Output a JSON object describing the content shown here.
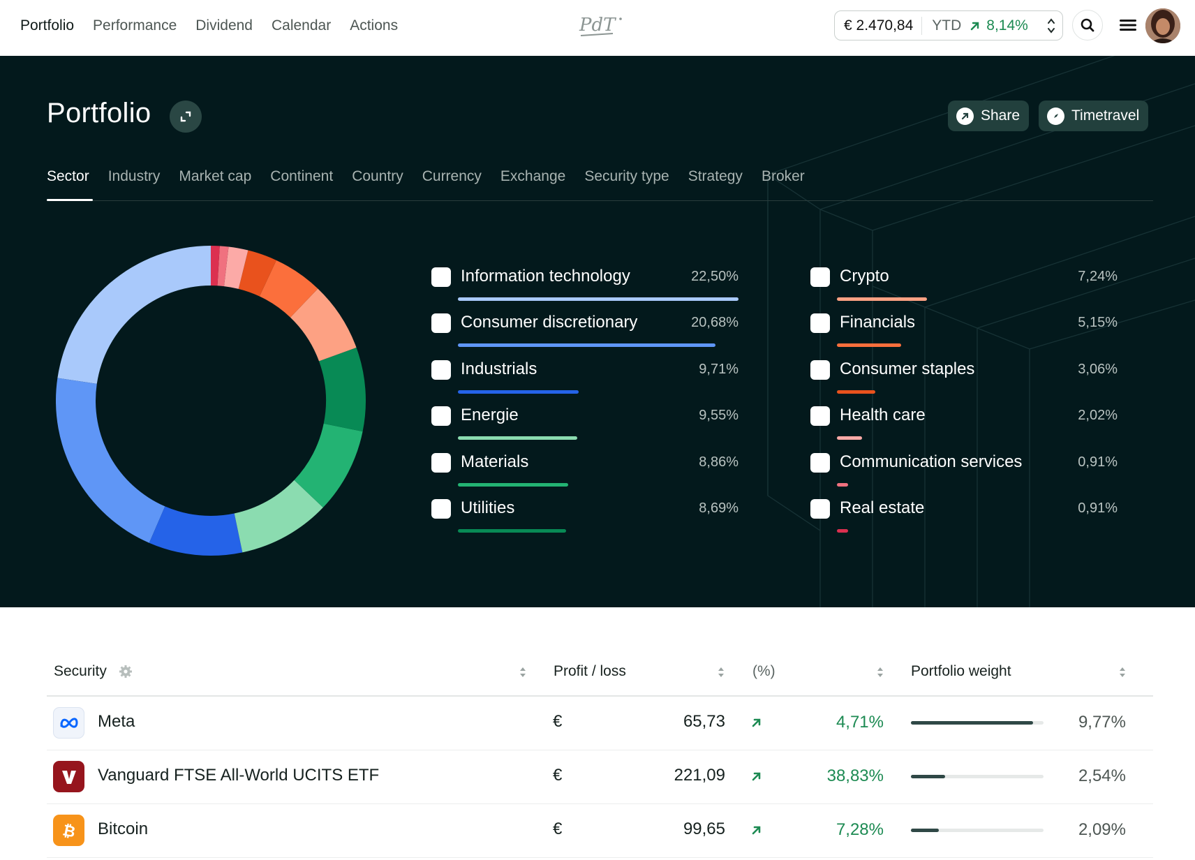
{
  "nav": {
    "items": [
      "Portfolio",
      "Performance",
      "Dividend",
      "Calendar",
      "Actions"
    ],
    "active": "Portfolio"
  },
  "logo_text": "PdT",
  "balance": {
    "amount": "€ 2.470,84",
    "period": "YTD",
    "change": "8,14%"
  },
  "hero": {
    "title": "Portfolio",
    "share_label": "Share",
    "timetravel_label": "Timetravel",
    "tabs": [
      "Sector",
      "Industry",
      "Market cap",
      "Continent",
      "Country",
      "Currency",
      "Exchange",
      "Security type",
      "Strategy",
      "Broker"
    ],
    "active_tab": "Sector"
  },
  "chart_data": {
    "type": "pie",
    "donut": true,
    "slices": [
      {
        "label": "Information technology",
        "value": 22.5,
        "display": "22,50%",
        "color": "#a9c9fb"
      },
      {
        "label": "Consumer discretionary",
        "value": 20.68,
        "display": "20,68%",
        "color": "#5f96f6"
      },
      {
        "label": "Industrials",
        "value": 9.71,
        "display": "9,71%",
        "color": "#2563e8"
      },
      {
        "label": "Energie",
        "value": 9.55,
        "display": "9,55%",
        "color": "#8bdcb0"
      },
      {
        "label": "Materials",
        "value": 8.86,
        "display": "8,86%",
        "color": "#23b373"
      },
      {
        "label": "Utilities",
        "value": 8.69,
        "display": "8,69%",
        "color": "#088a55"
      },
      {
        "label": "Crypto",
        "value": 7.24,
        "display": "7,24%",
        "color": "#fda183"
      },
      {
        "label": "Financials",
        "value": 5.15,
        "display": "5,15%",
        "color": "#fb6f3c"
      },
      {
        "label": "Consumer staples",
        "value": 3.06,
        "display": "3,06%",
        "color": "#e9521d"
      },
      {
        "label": "Health care",
        "value": 2.02,
        "display": "2,02%",
        "color": "#fcaaa7"
      },
      {
        "label": "Communication services",
        "value": 0.91,
        "display": "0,91%",
        "color": "#f0717f"
      },
      {
        "label": "Real estate",
        "value": 0.91,
        "display": "0,91%",
        "color": "#dc3050"
      }
    ]
  },
  "table": {
    "headers": {
      "security": "Security",
      "profit": "Profit / loss",
      "pct": "(%)",
      "weight": "Portfolio weight"
    },
    "rows": [
      {
        "name": "Meta",
        "currency": "€",
        "profit": "65,73",
        "pct": "4,71%",
        "weight": "9,77%",
        "weight_fraction": 0.92,
        "logo": "meta-logo",
        "logo_color": "#0866ff"
      },
      {
        "name": "Vanguard FTSE All-World UCITS ETF",
        "currency": "€",
        "profit": "221,09",
        "pct": "38,83%",
        "weight": "2,54%",
        "weight_fraction": 0.26,
        "logo": "vanguard-logo",
        "logo_color": "#96151d"
      },
      {
        "name": "Bitcoin",
        "currency": "€",
        "profit": "99,65",
        "pct": "7,28%",
        "weight": "2,09%",
        "weight_fraction": 0.21,
        "logo": "bitcoin-logo",
        "logo_color": "#f7931a"
      }
    ]
  }
}
